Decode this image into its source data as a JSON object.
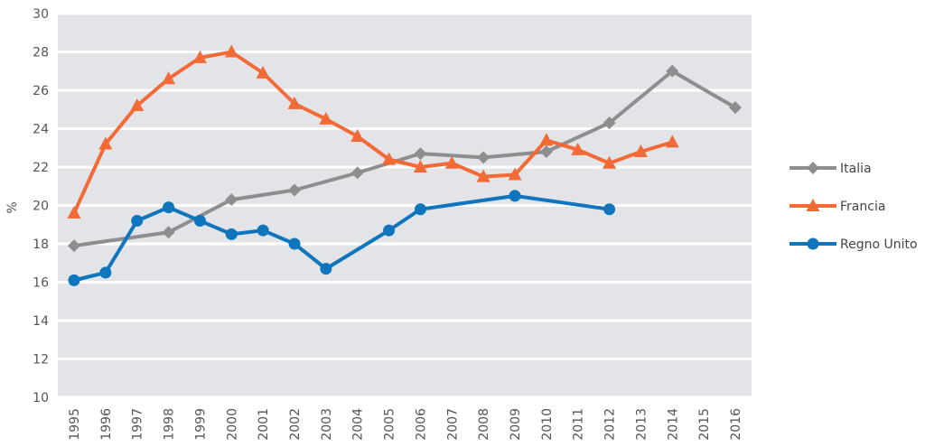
{
  "chart_data": {
    "type": "line",
    "title": "",
    "xlabel": "",
    "ylabel": "%",
    "ylim": [
      10,
      30
    ],
    "yticks": [
      10,
      12,
      14,
      16,
      18,
      20,
      22,
      24,
      26,
      28,
      30
    ],
    "grid": true,
    "legend_position": "right",
    "background_color": "#e3e4e8",
    "x": [
      1995,
      1996,
      1997,
      1998,
      1999,
      2000,
      2001,
      2002,
      2003,
      2004,
      2005,
      2006,
      2007,
      2008,
      2009,
      2010,
      2011,
      2012,
      2013,
      2014,
      2015,
      2016
    ],
    "series": [
      {
        "name": "Italia",
        "color": "#8c8e8f",
        "marker": "diamond",
        "values": [
          17.9,
          null,
          null,
          18.6,
          null,
          20.3,
          null,
          20.8,
          null,
          21.7,
          null,
          22.7,
          null,
          22.5,
          null,
          22.8,
          null,
          24.3,
          null,
          27.0,
          null,
          25.1
        ]
      },
      {
        "name": "Francia",
        "color": "#f26a36",
        "marker": "triangle",
        "values": [
          19.6,
          23.2,
          25.2,
          26.6,
          27.7,
          28.0,
          26.9,
          25.3,
          24.5,
          23.6,
          22.4,
          22.0,
          22.2,
          21.5,
          21.6,
          23.4,
          22.9,
          22.2,
          22.8,
          23.3,
          null,
          null
        ]
      },
      {
        "name": "Regno Unito",
        "color": "#0f75bc",
        "marker": "circle",
        "values": [
          16.1,
          16.5,
          19.2,
          19.9,
          19.2,
          18.5,
          18.7,
          18.0,
          16.7,
          null,
          18.7,
          19.8,
          null,
          null,
          20.5,
          null,
          null,
          19.8,
          null,
          null,
          null,
          null
        ]
      }
    ]
  }
}
